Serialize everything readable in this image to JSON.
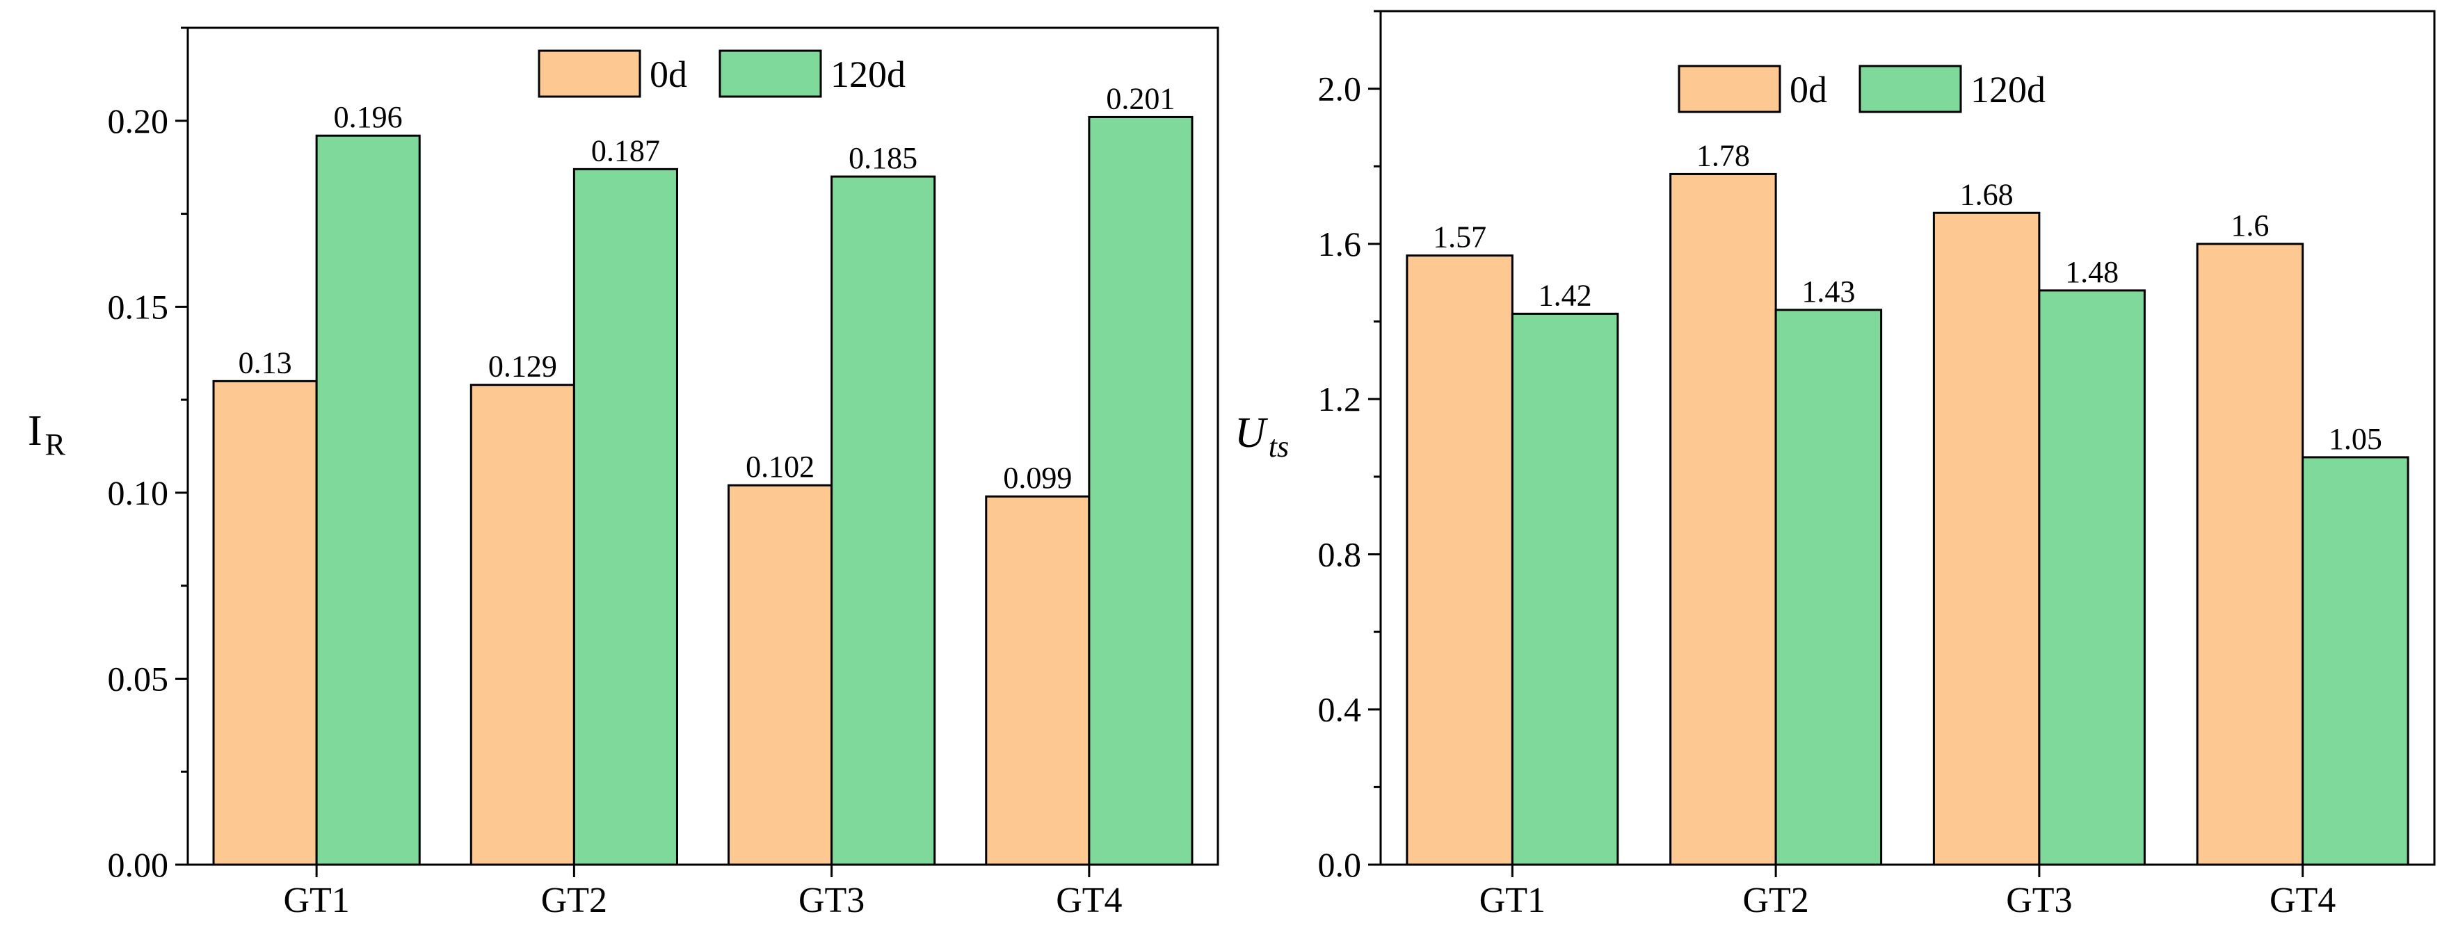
{
  "colors": {
    "series0": "#fec893",
    "series1": "#7fd99a",
    "axis": "#000000"
  },
  "chart_data": [
    {
      "type": "bar",
      "categories": [
        "GT1",
        "GT2",
        "GT3",
        "GT4"
      ],
      "series": [
        {
          "name": "0d",
          "values": [
            0.13,
            0.129,
            0.102,
            0.099
          ],
          "labels": [
            "0.13",
            "0.129",
            "0.102",
            "0.099"
          ]
        },
        {
          "name": "120d",
          "values": [
            0.196,
            0.187,
            0.185,
            0.201
          ],
          "labels": [
            "0.196",
            "0.187",
            "0.185",
            "0.201"
          ]
        }
      ],
      "ylabel_main": "I",
      "ylabel_sub": "R",
      "ylim": [
        0,
        0.225
      ],
      "yticks": [
        0.0,
        0.05,
        0.1,
        0.15,
        0.2
      ],
      "ytick_labels": [
        "0.00",
        "0.05",
        "0.10",
        "0.15",
        "0.20"
      ],
      "yminor": [
        0.025,
        0.075,
        0.125,
        0.175,
        0.225
      ],
      "legend": "top-center"
    },
    {
      "type": "bar",
      "categories": [
        "GT1",
        "GT2",
        "GT3",
        "GT4"
      ],
      "series": [
        {
          "name": "0d",
          "values": [
            1.57,
            1.78,
            1.68,
            1.6
          ],
          "labels": [
            "1.57",
            "1.78",
            "1.68",
            "1.6"
          ]
        },
        {
          "name": "120d",
          "values": [
            1.42,
            1.43,
            1.48,
            1.05
          ],
          "labels": [
            "1.42",
            "1.43",
            "1.48",
            "1.05"
          ]
        }
      ],
      "ylabel_main": "U",
      "ylabel_sub": "ts",
      "ylim": [
        0,
        2.2
      ],
      "yticks": [
        0.0,
        0.4,
        0.8,
        1.2,
        1.6,
        2.0
      ],
      "ytick_labels": [
        "0.0",
        "0.4",
        "0.8",
        "1.2",
        "1.6",
        "2.0"
      ],
      "yminor": [
        0.2,
        0.6,
        1.0,
        1.4,
        1.8,
        2.2
      ],
      "legend": "top-center"
    }
  ]
}
